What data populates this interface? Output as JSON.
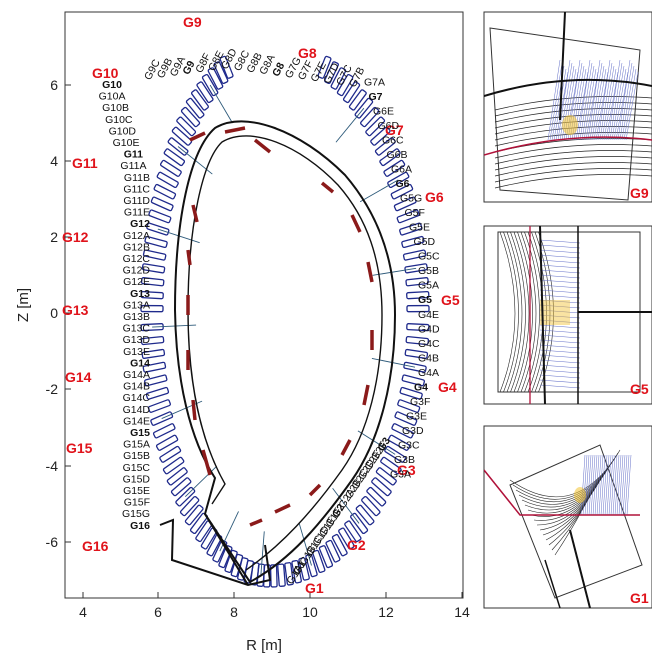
{
  "axes": {
    "xlabel": "R [m]",
    "ylabel": "Z [m]",
    "xticks": [
      "4",
      "6",
      "8",
      "10",
      "12",
      "14"
    ],
    "yticks": [
      "6",
      "4",
      "2",
      "0",
      "-2",
      "-4",
      "-6"
    ]
  },
  "sectors": [
    {
      "name": "G1"
    },
    {
      "name": "G2"
    },
    {
      "name": "G3"
    },
    {
      "name": "G4"
    },
    {
      "name": "G5"
    },
    {
      "name": "G6"
    },
    {
      "name": "G7"
    },
    {
      "name": "G8"
    },
    {
      "name": "G9"
    },
    {
      "name": "G10"
    },
    {
      "name": "G11"
    },
    {
      "name": "G12"
    },
    {
      "name": "G13"
    },
    {
      "name": "G14"
    },
    {
      "name": "G15"
    },
    {
      "name": "G16"
    }
  ],
  "right_labels": [
    {
      "t": "G4E",
      "b": false
    },
    {
      "t": "G4D",
      "b": false
    },
    {
      "t": "G4C",
      "b": false
    },
    {
      "t": "G4B",
      "b": false
    },
    {
      "t": "G4A",
      "b": false
    },
    {
      "t": "G4",
      "b": true
    },
    {
      "t": "G3F",
      "b": false
    },
    {
      "t": "G3E",
      "b": false
    },
    {
      "t": "G3D",
      "b": false
    },
    {
      "t": "G3C",
      "b": false
    },
    {
      "t": "G3B",
      "b": false
    },
    {
      "t": "G3A",
      "b": false
    },
    {
      "t": "G5",
      "b": true
    },
    {
      "t": "G5A",
      "b": false
    },
    {
      "t": "G5B",
      "b": false
    },
    {
      "t": "G5C",
      "b": false
    },
    {
      "t": "G5D",
      "b": false
    },
    {
      "t": "G5E",
      "b": false
    },
    {
      "t": "G5F",
      "b": false
    },
    {
      "t": "G5G",
      "b": false
    },
    {
      "t": "G6",
      "b": true
    },
    {
      "t": "G6A",
      "b": false
    },
    {
      "t": "G6B",
      "b": false
    },
    {
      "t": "G6C",
      "b": false
    },
    {
      "t": "G6D",
      "b": false
    },
    {
      "t": "G6E",
      "b": false
    },
    {
      "t": "G7",
      "b": true
    },
    {
      "t": "G7A",
      "b": false
    }
  ],
  "left_labels": [
    {
      "t": "G10",
      "b": true
    },
    {
      "t": "G10A",
      "b": false
    },
    {
      "t": "G10B",
      "b": false
    },
    {
      "t": "G10C",
      "b": false
    },
    {
      "t": "G10D",
      "b": false
    },
    {
      "t": "G10E",
      "b": false
    },
    {
      "t": "G11",
      "b": true
    },
    {
      "t": "G11A",
      "b": false
    },
    {
      "t": "G11B",
      "b": false
    },
    {
      "t": "G11C",
      "b": false
    },
    {
      "t": "G11D",
      "b": false
    },
    {
      "t": "G11E",
      "b": false
    },
    {
      "t": "G12",
      "b": true
    },
    {
      "t": "G12A",
      "b": false
    },
    {
      "t": "G12B",
      "b": false
    },
    {
      "t": "G12C",
      "b": false
    },
    {
      "t": "G12D",
      "b": false
    },
    {
      "t": "G12E",
      "b": false
    },
    {
      "t": "G13",
      "b": true
    },
    {
      "t": "G13A",
      "b": false
    },
    {
      "t": "G13B",
      "b": false
    },
    {
      "t": "G13C",
      "b": false
    },
    {
      "t": "G13D",
      "b": false
    },
    {
      "t": "G13E",
      "b": false
    },
    {
      "t": "G14",
      "b": true
    },
    {
      "t": "G14A",
      "b": false
    },
    {
      "t": "G14B",
      "b": false
    },
    {
      "t": "G14C",
      "b": false
    },
    {
      "t": "G14D",
      "b": false
    },
    {
      "t": "G14E",
      "b": false
    },
    {
      "t": "G15",
      "b": true
    },
    {
      "t": "G15A",
      "b": false
    },
    {
      "t": "G15B",
      "b": false
    },
    {
      "t": "G15C",
      "b": false
    },
    {
      "t": "G15D",
      "b": false
    },
    {
      "t": "G15E",
      "b": false
    },
    {
      "t": "G15F",
      "b": false
    },
    {
      "t": "G15G",
      "b": false
    },
    {
      "t": "G16",
      "b": true
    }
  ],
  "top_labels": [
    {
      "t": "G9C",
      "b": false
    },
    {
      "t": "G9B",
      "b": false
    },
    {
      "t": "G9A",
      "b": false
    },
    {
      "t": "G9",
      "b": true
    },
    {
      "t": "G8F",
      "b": false
    },
    {
      "t": "G8E",
      "b": false
    },
    {
      "t": "G8D",
      "b": false
    },
    {
      "t": "G8C",
      "b": false
    },
    {
      "t": "G8B",
      "b": false
    },
    {
      "t": "G8A",
      "b": false
    },
    {
      "t": "G8",
      "b": true
    },
    {
      "t": "G7G",
      "b": false
    },
    {
      "t": "G7F",
      "b": false
    },
    {
      "t": "G7E",
      "b": false
    },
    {
      "t": "G7D",
      "b": false
    },
    {
      "t": "G7C",
      "b": false
    },
    {
      "t": "G7B",
      "b": false
    }
  ],
  "bottom_labels": [
    {
      "t": "G1A",
      "b": false
    },
    {
      "t": "G1",
      "b": true
    },
    {
      "t": "G1B",
      "b": false
    },
    {
      "t": "G1C",
      "b": false
    },
    {
      "t": "G1D",
      "b": false
    },
    {
      "t": "G1E",
      "b": false
    },
    {
      "t": "G1F",
      "b": false
    },
    {
      "t": "G2",
      "b": true
    },
    {
      "t": "G2A",
      "b": false
    },
    {
      "t": "G2B",
      "b": false
    },
    {
      "t": "G2C",
      "b": false
    },
    {
      "t": "G2D",
      "b": false
    },
    {
      "t": "G2E",
      "b": false
    },
    {
      "t": "G2F",
      "b": false
    },
    {
      "t": "G3",
      "b": true
    }
  ],
  "insets": [
    {
      "label": "G9"
    },
    {
      "label": "G5"
    },
    {
      "label": "G1"
    }
  ],
  "colors": {
    "sector_label": "#e0131b",
    "coil": "#1f2a8c",
    "tile": "#8b1a1a",
    "wall": "#111111",
    "inset_red": "#b0123a",
    "hatch": "#6470c8",
    "hot": "#f2c230"
  }
}
